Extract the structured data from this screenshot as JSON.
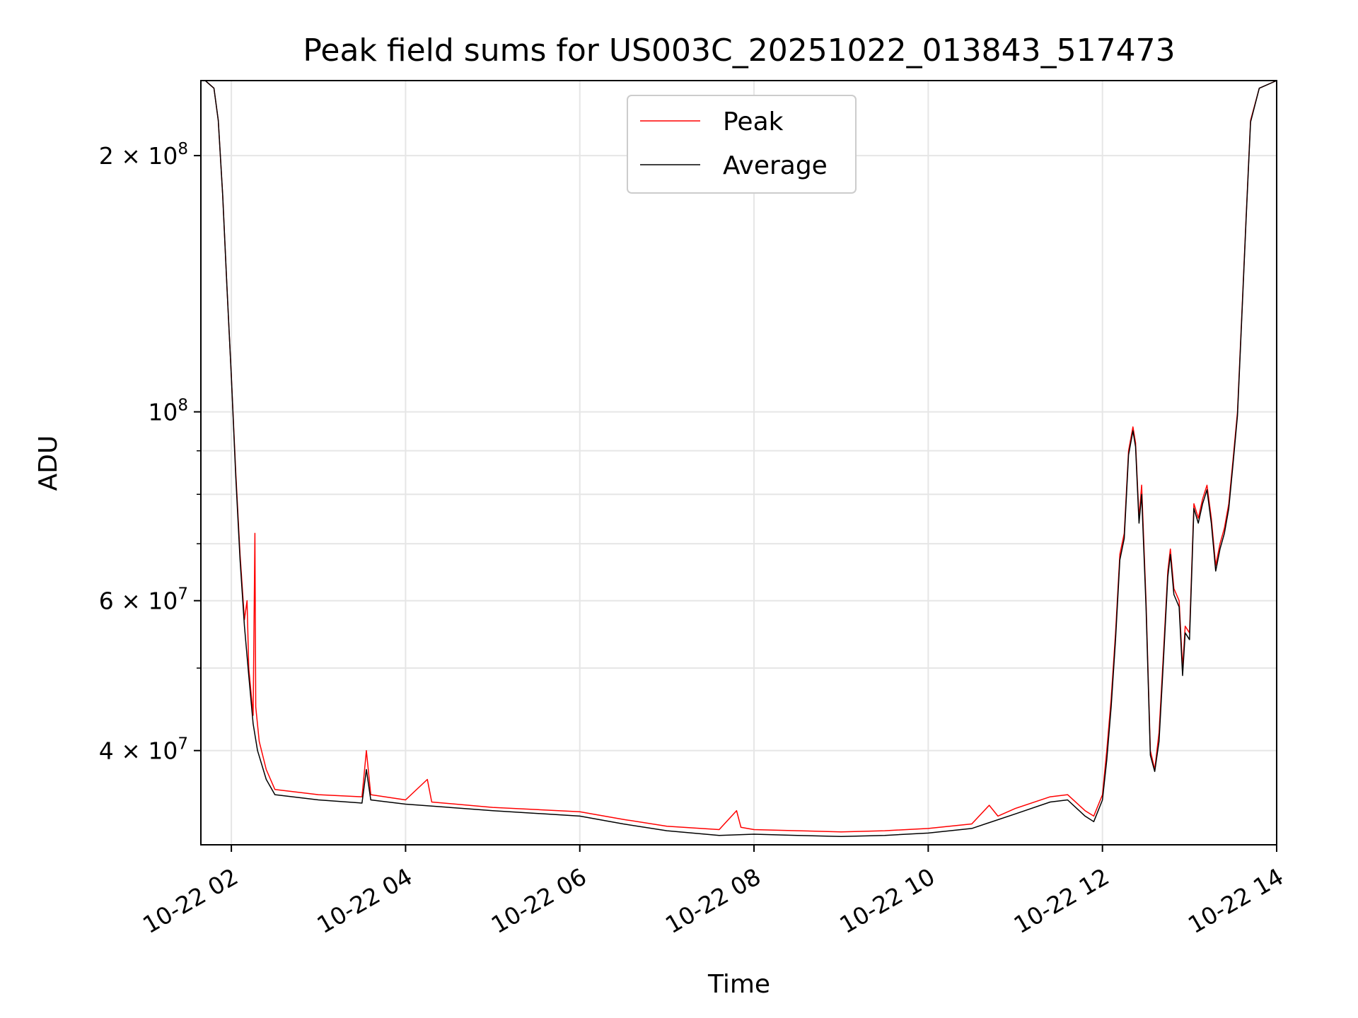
{
  "chart_data": {
    "type": "line",
    "title": "Peak field sums for US003C_20251022_013843_517473",
    "xlabel": "Time",
    "ylabel": "ADU",
    "yscale": "log",
    "ylim": [
      31000000,
      245000000
    ],
    "xlim_hours": [
      1.65,
      14.0
    ],
    "grid": true,
    "legend_position": "upper center",
    "x_ticks": [
      {
        "hour": 2,
        "label": "10-22 02"
      },
      {
        "hour": 4,
        "label": "10-22 04"
      },
      {
        "hour": 6,
        "label": "10-22 06"
      },
      {
        "hour": 8,
        "label": "10-22 08"
      },
      {
        "hour": 10,
        "label": "10-22 10"
      },
      {
        "hour": 12,
        "label": "10-22 12"
      },
      {
        "hour": 14,
        "label": "10-22 14"
      }
    ],
    "y_major_ticks": [
      {
        "value": 40000000,
        "base": "4",
        "exp": "7"
      },
      {
        "value": 60000000,
        "base": "6",
        "exp": "7"
      },
      {
        "value": 100000000,
        "base": "10",
        "exp": "8"
      },
      {
        "value": 200000000,
        "base": "2",
        "exp": "8"
      }
    ],
    "y_minor_ticks": [
      50000000,
      70000000,
      80000000,
      90000000
    ],
    "series": [
      {
        "name": "Peak",
        "color": "#ff0000",
        "points": [
          [
            1.65,
            245000000
          ],
          [
            1.7,
            245000000
          ],
          [
            1.8,
            240000000
          ],
          [
            1.85,
            220000000
          ],
          [
            1.9,
            180000000
          ],
          [
            1.95,
            140000000
          ],
          [
            2.0,
            110000000
          ],
          [
            2.05,
            85000000
          ],
          [
            2.1,
            68000000
          ],
          [
            2.15,
            57000000
          ],
          [
            2.18,
            60000000
          ],
          [
            2.2,
            50000000
          ],
          [
            2.25,
            44000000
          ],
          [
            2.27,
            72000000
          ],
          [
            2.28,
            45000000
          ],
          [
            2.32,
            41000000
          ],
          [
            2.4,
            38000000
          ],
          [
            2.5,
            36000000
          ],
          [
            3.0,
            35500000
          ],
          [
            3.5,
            35300000
          ],
          [
            3.55,
            40000000
          ],
          [
            3.6,
            35500000
          ],
          [
            4.0,
            35000000
          ],
          [
            4.25,
            37000000
          ],
          [
            4.3,
            34800000
          ],
          [
            5.0,
            34300000
          ],
          [
            6.0,
            33900000
          ],
          [
            6.5,
            33200000
          ],
          [
            7.0,
            32600000
          ],
          [
            7.6,
            32300000
          ],
          [
            7.8,
            34000000
          ],
          [
            7.85,
            32500000
          ],
          [
            8.0,
            32300000
          ],
          [
            8.5,
            32200000
          ],
          [
            9.0,
            32100000
          ],
          [
            9.5,
            32200000
          ],
          [
            10.0,
            32400000
          ],
          [
            10.5,
            32800000
          ],
          [
            10.7,
            34500000
          ],
          [
            10.8,
            33500000
          ],
          [
            11.0,
            34200000
          ],
          [
            11.4,
            35300000
          ],
          [
            11.6,
            35500000
          ],
          [
            11.8,
            34000000
          ],
          [
            11.9,
            33500000
          ],
          [
            12.0,
            35500000
          ],
          [
            12.05,
            40000000
          ],
          [
            12.1,
            46000000
          ],
          [
            12.15,
            55000000
          ],
          [
            12.2,
            68000000
          ],
          [
            12.25,
            72000000
          ],
          [
            12.3,
            90000000
          ],
          [
            12.35,
            96000000
          ],
          [
            12.38,
            92000000
          ],
          [
            12.42,
            75000000
          ],
          [
            12.45,
            82000000
          ],
          [
            12.5,
            60000000
          ],
          [
            12.55,
            40000000
          ],
          [
            12.6,
            38000000
          ],
          [
            12.65,
            42000000
          ],
          [
            12.7,
            52000000
          ],
          [
            12.75,
            65000000
          ],
          [
            12.78,
            69000000
          ],
          [
            12.82,
            62000000
          ],
          [
            12.88,
            60000000
          ],
          [
            12.92,
            50000000
          ],
          [
            12.95,
            56000000
          ],
          [
            13.0,
            55000000
          ],
          [
            13.05,
            78000000
          ],
          [
            13.1,
            75000000
          ],
          [
            13.15,
            79000000
          ],
          [
            13.2,
            82000000
          ],
          [
            13.25,
            75000000
          ],
          [
            13.3,
            66000000
          ],
          [
            13.35,
            70000000
          ],
          [
            13.4,
            73000000
          ],
          [
            13.45,
            78000000
          ],
          [
            13.5,
            88000000
          ],
          [
            13.55,
            100000000
          ],
          [
            13.6,
            130000000
          ],
          [
            13.65,
            170000000
          ],
          [
            13.7,
            220000000
          ],
          [
            13.8,
            240000000
          ],
          [
            14.0,
            245000000
          ]
        ]
      },
      {
        "name": "Average",
        "color": "#000000",
        "points": [
          [
            1.65,
            245000000
          ],
          [
            1.7,
            245000000
          ],
          [
            1.8,
            240000000
          ],
          [
            1.85,
            220000000
          ],
          [
            1.9,
            180000000
          ],
          [
            1.95,
            140000000
          ],
          [
            2.0,
            110000000
          ],
          [
            2.05,
            84000000
          ],
          [
            2.1,
            67000000
          ],
          [
            2.15,
            56000000
          ],
          [
            2.2,
            49000000
          ],
          [
            2.25,
            43000000
          ],
          [
            2.3,
            40000000
          ],
          [
            2.4,
            37000000
          ],
          [
            2.5,
            35500000
          ],
          [
            3.0,
            35000000
          ],
          [
            3.5,
            34700000
          ],
          [
            3.55,
            38000000
          ],
          [
            3.6,
            35000000
          ],
          [
            4.0,
            34600000
          ],
          [
            5.0,
            34000000
          ],
          [
            6.0,
            33500000
          ],
          [
            6.5,
            32800000
          ],
          [
            7.0,
            32200000
          ],
          [
            7.6,
            31800000
          ],
          [
            8.0,
            31900000
          ],
          [
            8.5,
            31800000
          ],
          [
            9.0,
            31700000
          ],
          [
            9.5,
            31800000
          ],
          [
            10.0,
            32000000
          ],
          [
            10.5,
            32400000
          ],
          [
            11.0,
            33700000
          ],
          [
            11.4,
            34800000
          ],
          [
            11.6,
            35000000
          ],
          [
            11.8,
            33500000
          ],
          [
            11.9,
            33000000
          ],
          [
            12.0,
            35000000
          ],
          [
            12.05,
            39000000
          ],
          [
            12.1,
            45000000
          ],
          [
            12.15,
            54000000
          ],
          [
            12.2,
            67000000
          ],
          [
            12.25,
            71000000
          ],
          [
            12.3,
            89000000
          ],
          [
            12.35,
            95000000
          ],
          [
            12.38,
            91000000
          ],
          [
            12.42,
            74000000
          ],
          [
            12.45,
            80000000
          ],
          [
            12.5,
            59000000
          ],
          [
            12.55,
            39500000
          ],
          [
            12.6,
            37800000
          ],
          [
            12.65,
            41000000
          ],
          [
            12.7,
            51000000
          ],
          [
            12.75,
            64000000
          ],
          [
            12.78,
            68000000
          ],
          [
            12.82,
            61000000
          ],
          [
            12.88,
            59000000
          ],
          [
            12.92,
            49000000
          ],
          [
            12.95,
            55000000
          ],
          [
            13.0,
            54000000
          ],
          [
            13.05,
            77000000
          ],
          [
            13.1,
            74000000
          ],
          [
            13.15,
            78000000
          ],
          [
            13.2,
            81000000
          ],
          [
            13.25,
            74000000
          ],
          [
            13.3,
            65000000
          ],
          [
            13.35,
            69000000
          ],
          [
            13.4,
            72000000
          ],
          [
            13.45,
            77000000
          ],
          [
            13.5,
            87000000
          ],
          [
            13.55,
            99000000
          ],
          [
            13.6,
            129000000
          ],
          [
            13.65,
            169000000
          ],
          [
            13.7,
            219000000
          ],
          [
            13.8,
            240000000
          ],
          [
            14.0,
            245000000
          ]
        ]
      }
    ]
  }
}
